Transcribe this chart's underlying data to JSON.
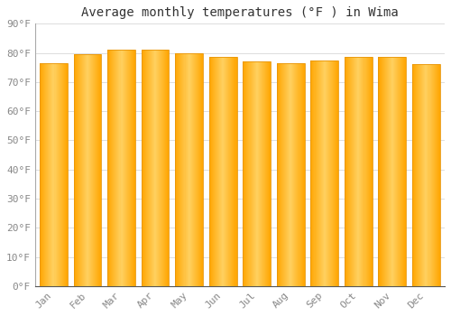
{
  "title": "Average monthly temperatures (°F ) in Wima",
  "months": [
    "Jan",
    "Feb",
    "Mar",
    "Apr",
    "May",
    "Jun",
    "Jul",
    "Aug",
    "Sep",
    "Oct",
    "Nov",
    "Dec"
  ],
  "values": [
    76.5,
    79.5,
    81.0,
    81.0,
    80.0,
    78.5,
    77.0,
    76.5,
    77.5,
    78.5,
    78.5,
    76.0
  ],
  "bar_color_center": "#FFD060",
  "bar_color_edge": "#FFA500",
  "bar_edge_color": "#E8960A",
  "background_color": "#FFFFFF",
  "plot_bg_color": "#FFFFFF",
  "grid_color": "#DDDDDD",
  "ylim": [
    0,
    90
  ],
  "yticks": [
    0,
    10,
    20,
    30,
    40,
    50,
    60,
    70,
    80,
    90
  ],
  "ytick_labels": [
    "0°F",
    "10°F",
    "20°F",
    "30°F",
    "40°F",
    "50°F",
    "60°F",
    "70°F",
    "80°F",
    "90°F"
  ],
  "title_fontsize": 10,
  "tick_fontsize": 8,
  "font_family": "monospace",
  "bar_width": 0.82,
  "n_gradient_strips": 30
}
